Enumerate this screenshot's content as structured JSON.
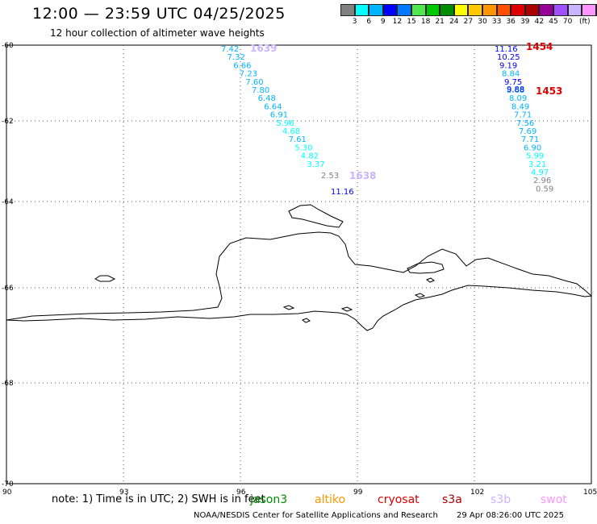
{
  "header": {
    "title": "12:00 — 23:59 UTC 04/25/2025",
    "subtitle": "12 hour collection of altimeter wave heights"
  },
  "color_scale": {
    "unit": "(ft)",
    "colors": [
      "#808080",
      "#00ffff",
      "#00b4ff",
      "#0000ff",
      "#0078ff",
      "#50e650",
      "#00c800",
      "#008c00",
      "#ffff00",
      "#ffc800",
      "#ff9600",
      "#ff5000",
      "#dc0000",
      "#aa0000",
      "#960096",
      "#a050ff",
      "#c8b4ff",
      "#ff96ff",
      "#000000"
    ],
    "labels": [
      "3",
      "6",
      "9",
      "12",
      "15",
      "18",
      "21",
      "24",
      "27",
      "30",
      "33",
      "36",
      "39",
      "42",
      "45",
      "70"
    ]
  },
  "map": {
    "lat_ticks": [
      "-60",
      "-62",
      "-64",
      "-66",
      "-68",
      "-70"
    ],
    "lon_ticks": [
      "90",
      "93",
      "96",
      "99",
      "102",
      "105"
    ]
  },
  "tracks": [
    {
      "id": "1639",
      "label_color": "#c8b4ff",
      "points": [
        {
          "v": "7.42",
          "c": "#00b4ff"
        },
        {
          "v": "7.32",
          "c": "#00b4ff"
        },
        {
          "v": "6.66",
          "c": "#00b4ff"
        },
        {
          "v": "7.23",
          "c": "#00b4ff"
        },
        {
          "v": "7.60",
          "c": "#00b4ff"
        },
        {
          "v": "7.80",
          "c": "#00b4ff"
        },
        {
          "v": "6.48",
          "c": "#00b4ff"
        },
        {
          "v": "6.64",
          "c": "#00b4ff"
        },
        {
          "v": "6.91",
          "c": "#00b4ff"
        },
        {
          "v": "5.96",
          "c": "#00ffff"
        },
        {
          "v": "4.68",
          "c": "#00ffff"
        },
        {
          "v": "7.61",
          "c": "#00b4ff"
        },
        {
          "v": "5.30",
          "c": "#00ffff"
        },
        {
          "v": "4.82",
          "c": "#00ffff"
        },
        {
          "v": "3.37",
          "c": "#00ffff"
        },
        {
          "v": "2.53",
          "c": "#808080"
        }
      ]
    },
    {
      "id": "1638",
      "label_color": "#c8b4ff",
      "points": [
        {
          "v": "11.16",
          "c": "#0000ff"
        }
      ]
    },
    {
      "id": "1454",
      "label_color": "#dc0000",
      "points": [
        {
          "v": "11.16",
          "c": "#0000ff"
        },
        {
          "v": "10.25",
          "c": "#0000ff"
        },
        {
          "v": "9.19",
          "c": "#0000ff"
        },
        {
          "v": "8.84",
          "c": "#00b4ff"
        },
        {
          "v": "9.75",
          "c": "#0000ff"
        },
        {
          "v": "8.68",
          "c": "#00b4ff"
        },
        {
          "v": "8.09",
          "c": "#00b4ff"
        },
        {
          "v": "8.49",
          "c": "#00b4ff"
        },
        {
          "v": "7.71",
          "c": "#00b4ff"
        },
        {
          "v": "7.56",
          "c": "#00b4ff"
        },
        {
          "v": "7.69",
          "c": "#00b4ff"
        },
        {
          "v": "7.71",
          "c": "#00b4ff"
        },
        {
          "v": "6.90",
          "c": "#00b4ff"
        },
        {
          "v": "5.99",
          "c": "#00ffff"
        },
        {
          "v": "3.21",
          "c": "#00ffff"
        },
        {
          "v": "4.97",
          "c": "#00ffff"
        },
        {
          "v": "2.96",
          "c": "#808080"
        },
        {
          "v": "0.59",
          "c": "#808080"
        }
      ]
    },
    {
      "id": "1453",
      "label_color": "#dc0000",
      "points": [
        {
          "v": "9.88",
          "c": "#0000ff"
        }
      ]
    }
  ],
  "footer": {
    "note": "note: 1) Time is in UTC; 2) SWH is in feet",
    "satellites": [
      {
        "name": "jason3",
        "color": "#008c00"
      },
      {
        "name": "altiko",
        "color": "#ff9600"
      },
      {
        "name": "cryosat",
        "color": "#dc0000"
      },
      {
        "name": "s3a",
        "color": "#aa0000"
      },
      {
        "name": "s3b",
        "color": "#c8b4ff"
      },
      {
        "name": "swot",
        "color": "#ff96ff"
      }
    ],
    "credit": "NOAA/NESDIS Center for Satellite Applications and Research",
    "timestamp": "29 Apr 08:26:00 UTC 2025"
  }
}
